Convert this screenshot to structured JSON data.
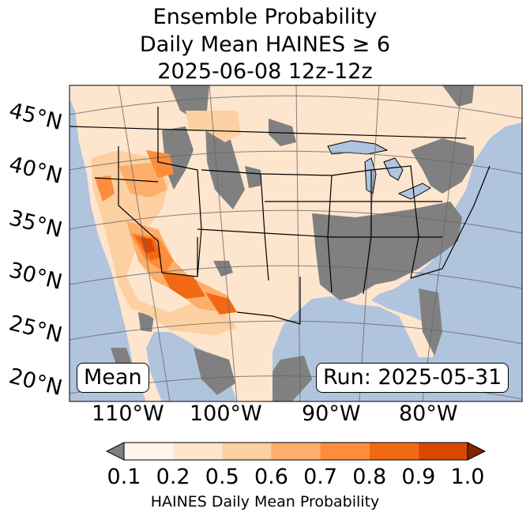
{
  "title": {
    "line1": "Ensemble Probability",
    "line2": "Daily Mean HAINES ≥ 6",
    "line3": "2025-06-08 12z-12z"
  },
  "map": {
    "land_color": "#fee6ce",
    "water_color": "#b0c4de",
    "nodata_color": "#808080",
    "latitude_labels": [
      "45°N",
      "40°N",
      "35°N",
      "30°N",
      "25°N",
      "20°N"
    ],
    "longitude_labels": [
      "110°W",
      "100°W",
      "90°W",
      "80°W"
    ],
    "stat_label": "Mean",
    "run_label": "Run: 2025-05-31"
  },
  "colorbar": {
    "label": "HAINES Daily Mean Probability",
    "ticks": [
      "0.1",
      "0.2",
      "0.5",
      "0.6",
      "0.7",
      "0.8",
      "0.9",
      "1.0"
    ],
    "colors": [
      "#fff5eb",
      "#fee6ce",
      "#fdd0a2",
      "#fdae6b",
      "#fd8d3c",
      "#f16913",
      "#d94801",
      "#a63603"
    ],
    "under_color": "#808080",
    "over_color": "#7f2704"
  }
}
